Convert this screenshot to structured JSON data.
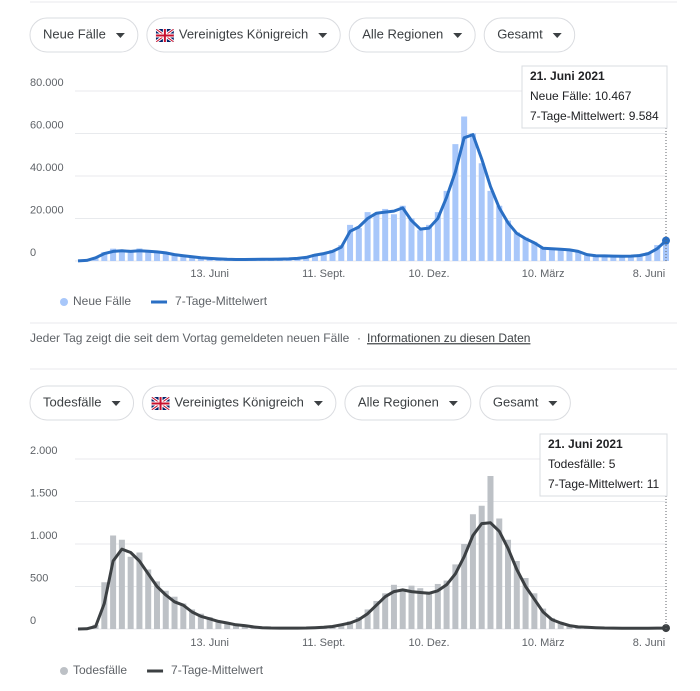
{
  "chart_data": [
    {
      "type": "bar",
      "filters": [
        "Neue Fälle",
        "Vereinigtes Königreich",
        "Alle Regionen",
        "Gesamt"
      ],
      "categories": [
        null,
        null,
        null,
        null,
        null,
        null,
        null,
        null,
        null,
        null,
        null,
        null,
        null,
        null,
        null,
        "13. Juni",
        null,
        null,
        null,
        null,
        null,
        null,
        null,
        null,
        null,
        null,
        null,
        null,
        "11. Sept.",
        null,
        null,
        null,
        null,
        null,
        null,
        null,
        null,
        null,
        null,
        null,
        "10. Dez.",
        null,
        null,
        null,
        null,
        null,
        null,
        null,
        null,
        null,
        null,
        null,
        null,
        "10. März",
        null,
        null,
        null,
        null,
        null,
        null,
        null,
        null,
        null,
        null,
        null,
        null,
        "8. Juni",
        null
      ],
      "series": [
        {
          "name": "Neue Fälle",
          "type": "bar",
          "color": "#a8c7fa",
          "values": [
            40,
            400,
            1800,
            4200,
            5800,
            5200,
            4700,
            5900,
            5000,
            4600,
            3900,
            3200,
            2700,
            2100,
            1600,
            1300,
            1100,
            850,
            750,
            800,
            850,
            900,
            950,
            1000,
            1100,
            1400,
            2000,
            3200,
            4000,
            5200,
            7500,
            17000,
            15500,
            23000,
            22000,
            24500,
            22000,
            26000,
            20000,
            14500,
            17000,
            23000,
            33000,
            55000,
            68000,
            60000,
            46000,
            33000,
            26000,
            19000,
            13500,
            11000,
            9000,
            6300,
            6000,
            5700,
            5000,
            4700,
            3100,
            2600,
            2500,
            2400,
            2100,
            2400,
            2900,
            4100,
            7500,
            10467
          ]
        },
        {
          "name": "7-Tage-Mittelwert",
          "type": "line",
          "color": "#2a6fc4",
          "values": [
            50,
            300,
            1500,
            3500,
            4500,
            4800,
            4500,
            4800,
            4600,
            4300,
            3800,
            3000,
            2500,
            2000,
            1500,
            1200,
            1000,
            800,
            700,
            700,
            750,
            800,
            850,
            900,
            1000,
            1200,
            1700,
            2800,
            3500,
            4500,
            6500,
            14000,
            16000,
            20000,
            22500,
            23000,
            23500,
            25000,
            19000,
            15000,
            15500,
            20000,
            30000,
            42000,
            58000,
            59500,
            48000,
            35000,
            25000,
            18000,
            13000,
            10500,
            8500,
            6000,
            5800,
            5500,
            5200,
            4500,
            3000,
            2500,
            2400,
            2300,
            2200,
            2300,
            2600,
            3500,
            5800,
            9584
          ]
        }
      ],
      "ylim": [
        0,
        80000
      ],
      "yticks": [
        0,
        {
          "value": 20000,
          "label": "20.000"
        },
        {
          "value": 40000,
          "label": "40.000"
        },
        {
          "value": 60000,
          "label": "60.000"
        },
        {
          "value": 80000,
          "label": "80.000"
        }
      ],
      "grid": true,
      "tooltip": {
        "date": "21. Juni 2021",
        "rows": [
          "Neue Fälle: 10.467",
          "7-Tage-Mittelwert: 9.584"
        ]
      }
    },
    {
      "type": "bar",
      "filters": [
        "Todesfälle",
        "Vereinigtes Königreich",
        "Alle Regionen",
        "Gesamt"
      ],
      "categories": [
        null,
        null,
        null,
        null,
        null,
        null,
        null,
        null,
        null,
        null,
        null,
        null,
        null,
        null,
        null,
        "13. Juni",
        null,
        null,
        null,
        null,
        null,
        null,
        null,
        null,
        null,
        null,
        null,
        null,
        "11. Sept.",
        null,
        null,
        null,
        null,
        null,
        null,
        null,
        null,
        null,
        null,
        null,
        "10. Dez.",
        null,
        null,
        null,
        null,
        null,
        null,
        null,
        null,
        null,
        null,
        null,
        null,
        "10. März",
        null,
        null,
        null,
        null,
        null,
        null,
        null,
        null,
        null,
        null,
        null,
        null,
        "8. Juni",
        null
      ],
      "series": [
        {
          "name": "Todesfälle",
          "type": "bar",
          "color": "#bdc1c6",
          "values": [
            0,
            5,
            50,
            550,
            1100,
            1050,
            850,
            900,
            700,
            560,
            450,
            380,
            300,
            230,
            180,
            140,
            100,
            80,
            60,
            45,
            30,
            18,
            15,
            12,
            11,
            12,
            15,
            18,
            25,
            35,
            60,
            90,
            140,
            230,
            330,
            420,
            520,
            470,
            510,
            480,
            440,
            530,
            570,
            760,
            1000,
            1350,
            1450,
            1800,
            1300,
            1050,
            800,
            600,
            420,
            240,
            130,
            80,
            50,
            30,
            25,
            18,
            14,
            12,
            10,
            9,
            9,
            11,
            13,
            5
          ]
        },
        {
          "name": "7-Tage-Mittelwert",
          "type": "line",
          "color": "#3c4043",
          "values": [
            0,
            2,
            30,
            300,
            800,
            940,
            900,
            800,
            650,
            500,
            400,
            320,
            280,
            200,
            150,
            120,
            90,
            70,
            50,
            40,
            25,
            15,
            12,
            10,
            10,
            10,
            12,
            15,
            20,
            30,
            50,
            70,
            110,
            180,
            280,
            380,
            440,
            460,
            440,
            430,
            420,
            450,
            520,
            650,
            850,
            1100,
            1240,
            1250,
            1150,
            950,
            700,
            500,
            350,
            200,
            110,
            70,
            40,
            25,
            20,
            15,
            12,
            10,
            8,
            8,
            8,
            9,
            10,
            11
          ]
        }
      ],
      "ylim": [
        0,
        2000
      ],
      "yticks": [
        0,
        500,
        {
          "value": 1000,
          "label": "1.000"
        },
        {
          "value": 1500,
          "label": "1.500"
        },
        {
          "value": 2000,
          "label": "2.000"
        }
      ],
      "grid": true,
      "tooltip": {
        "date": "21. Juni 2021",
        "rows": [
          "Todesfälle: 5",
          "7-Tage-Mittelwert: 11"
        ]
      }
    }
  ],
  "footnote": {
    "text": "Jeder Tag zeigt die seit dem Vortag gemeldeten neuen Fälle",
    "separator": "·",
    "link": "Informationen zu diesen Daten"
  }
}
